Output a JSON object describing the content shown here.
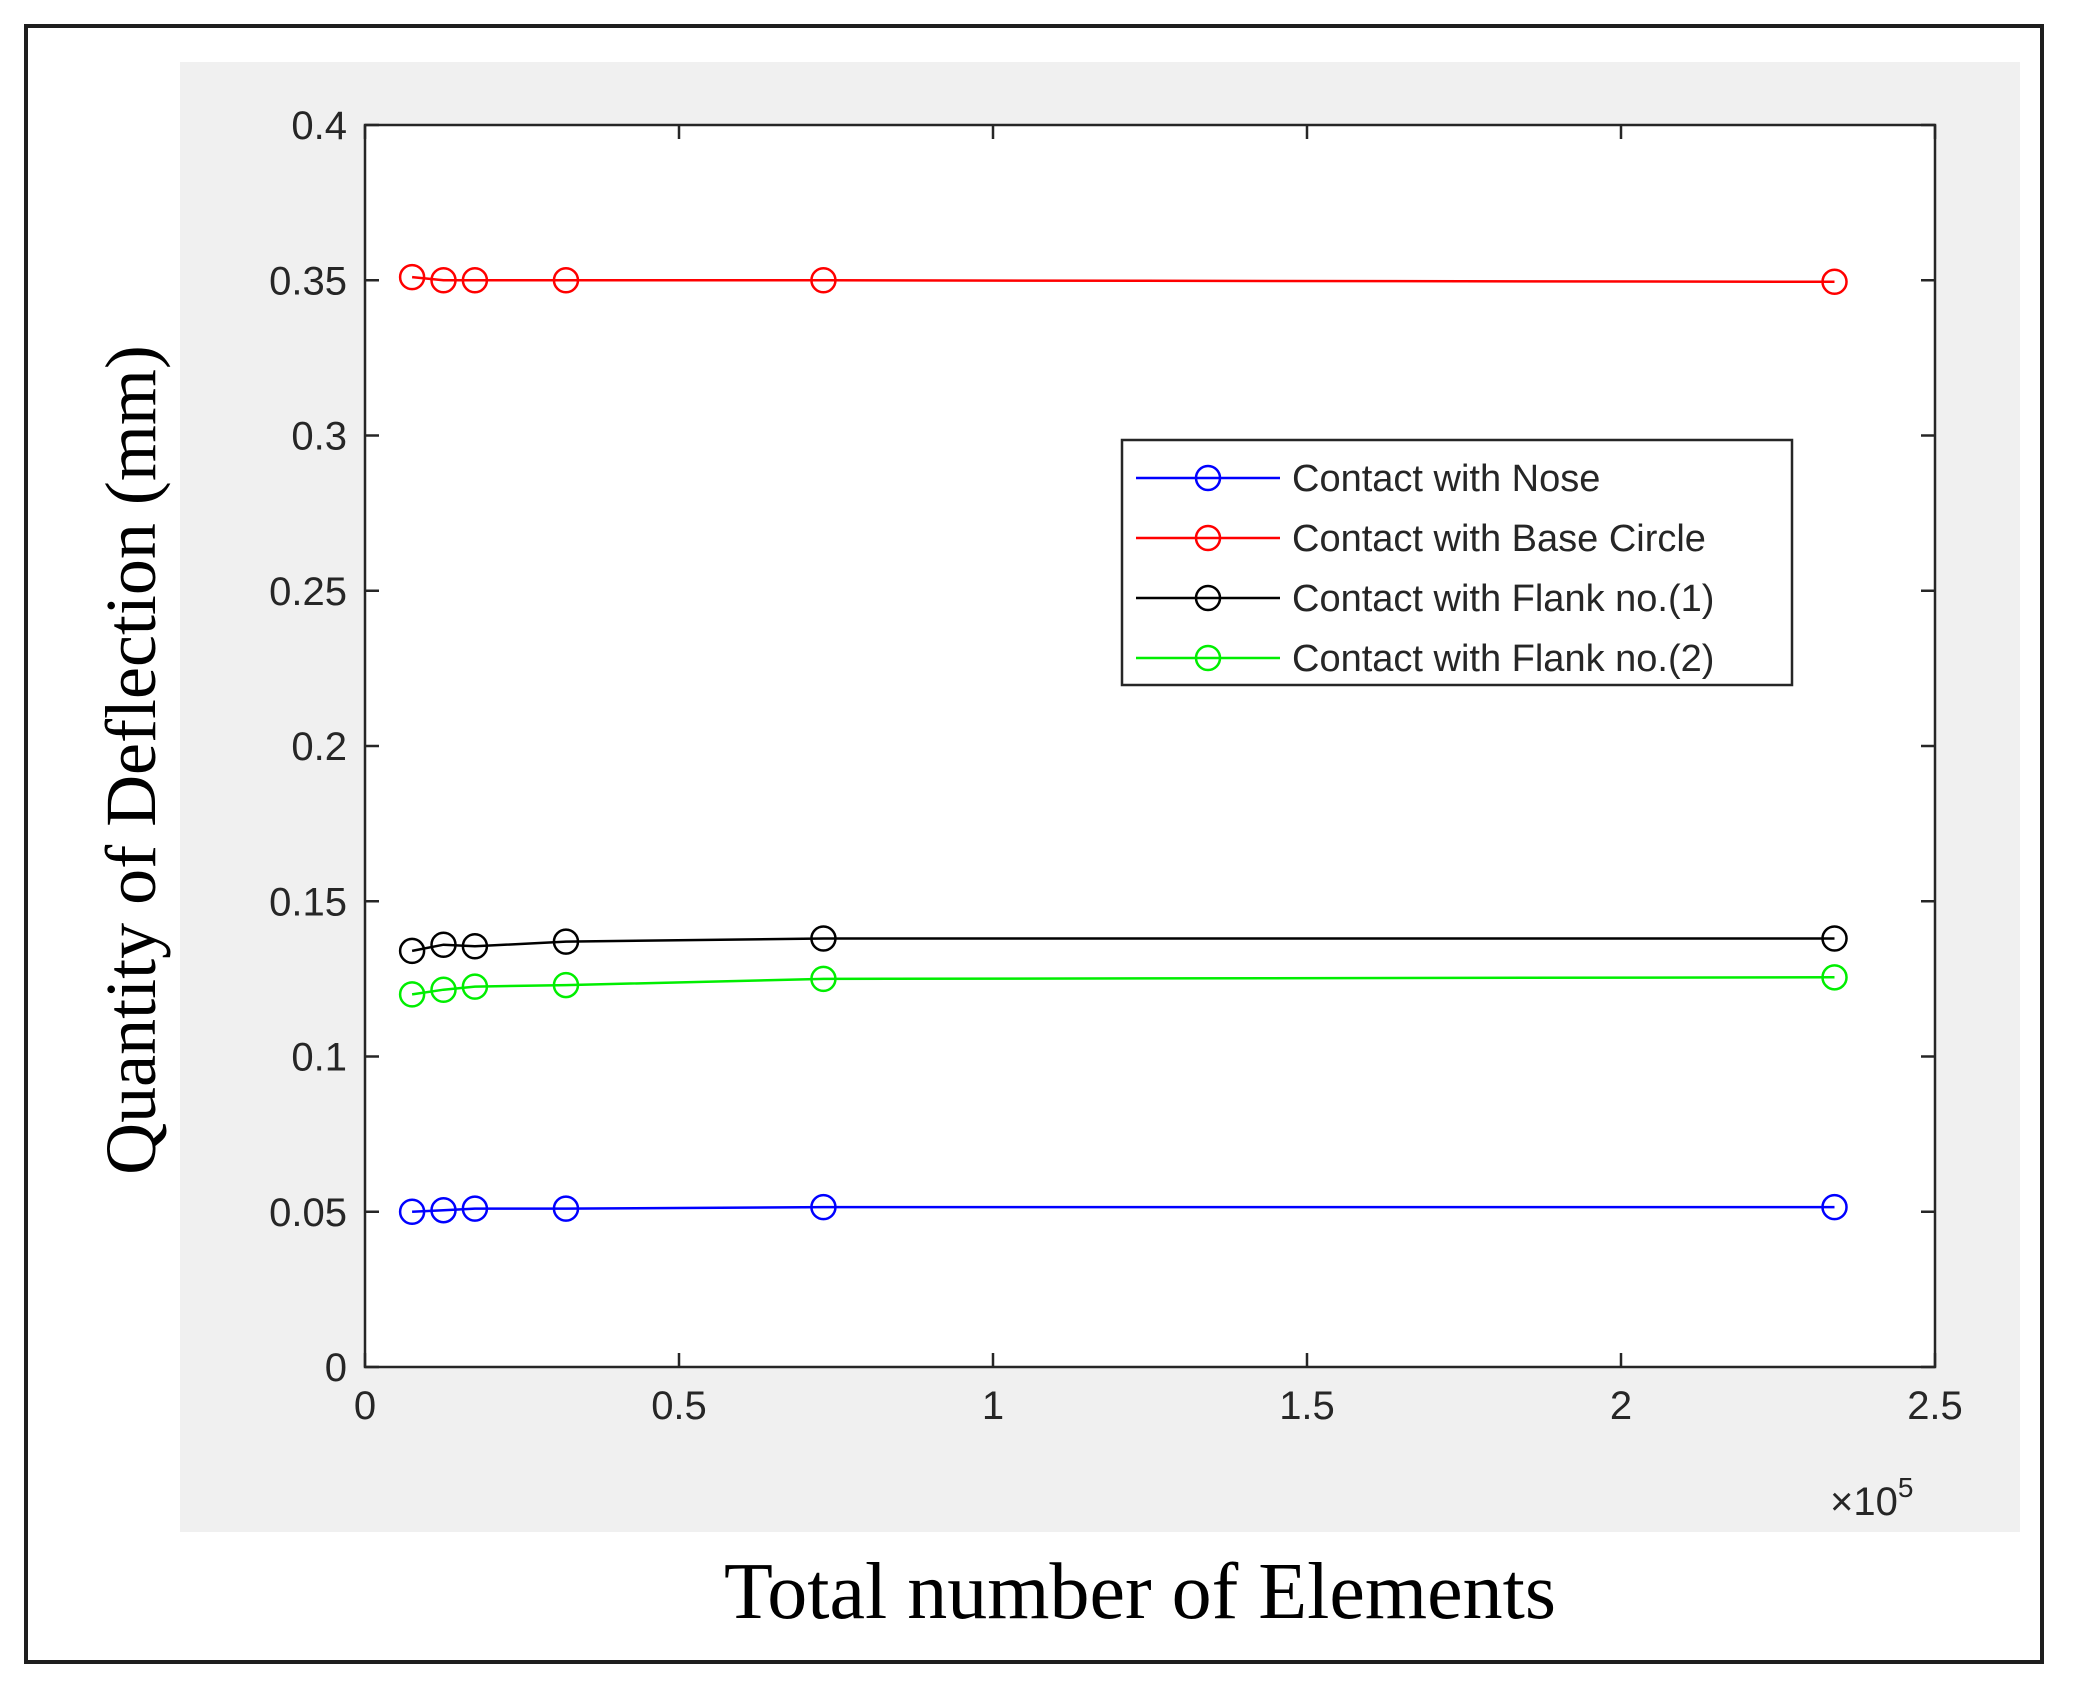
{
  "chart_data": {
    "type": "line",
    "xlabel": "Total number of Elements",
    "ylabel": "Quantity of Deflection (mm)",
    "x_exponent_label": "×10",
    "x_exponent_power": "5",
    "xlim": [
      0,
      2.5
    ],
    "ylim": [
      0,
      0.4
    ],
    "x_ticks": [
      0,
      0.5,
      1,
      1.5,
      2,
      2.5
    ],
    "x_tick_labels": [
      "0",
      "0.5",
      "1",
      "1.5",
      "2",
      "2.5"
    ],
    "y_ticks": [
      0,
      0.05,
      0.1,
      0.15,
      0.2,
      0.25,
      0.3,
      0.35,
      0.4
    ],
    "y_tick_labels": [
      "0",
      "0.05",
      "0.1",
      "0.15",
      "0.2",
      "0.25",
      "0.3",
      "0.35",
      "0.4"
    ],
    "grid": false,
    "legend_position": "upper-right",
    "marker": "circle",
    "x": [
      0.075,
      0.125,
      0.175,
      0.32,
      0.73,
      2.34
    ],
    "series": [
      {
        "name": "Contact with Nose",
        "color": "#0000ff",
        "values": [
          0.05,
          0.0505,
          0.051,
          0.051,
          0.0515,
          0.0515
        ]
      },
      {
        "name": "Contact with Base Circle",
        "color": "#ff0000",
        "values": [
          0.351,
          0.35,
          0.35,
          0.35,
          0.35,
          0.3495
        ]
      },
      {
        "name": "Contact with Flank no.(1)",
        "color": "#000000",
        "values": [
          0.134,
          0.136,
          0.1355,
          0.137,
          0.138,
          0.138
        ]
      },
      {
        "name": "Contact with Flank no.(2)",
        "color": "#00ee00",
        "values": [
          0.12,
          0.1215,
          0.1225,
          0.123,
          0.125,
          0.1255
        ]
      }
    ]
  }
}
